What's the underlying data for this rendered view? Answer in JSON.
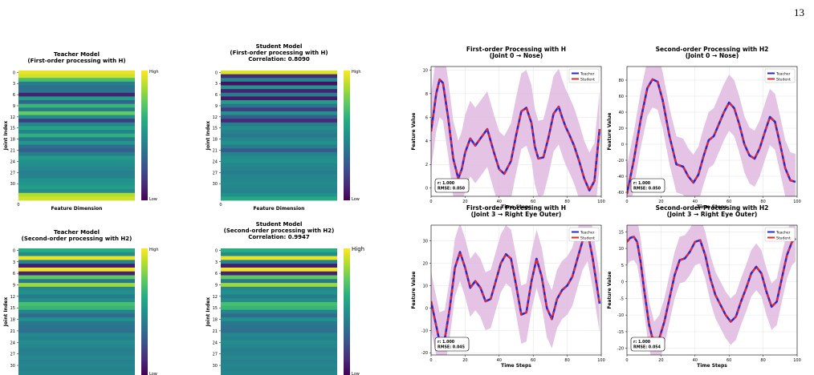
{
  "page": {
    "number": "13"
  },
  "colors": {
    "band": "#dfb8e0",
    "teacher": "#1f2bd6",
    "student": "#e8262a",
    "grid": "#e3e3e3"
  },
  "chart_data": [
    {
      "id": "hm-teacher-h",
      "type": "heatmap",
      "title": "Teacher Model",
      "subtitle": "(First-order processing with H)",
      "ylabel": "Joint Index",
      "xlabel": "Feature Dimension",
      "yticks": [
        "0",
        "3",
        "6",
        "9",
        "12",
        "15",
        "18",
        "21",
        "24",
        "27",
        "30"
      ],
      "xticks": [
        "0"
      ],
      "colorbar": {
        "high": "High",
        "low": "Low"
      },
      "rows": [
        0.97,
        0.93,
        0.7,
        0.42,
        0.36,
        0.38,
        0.1,
        0.55,
        0.32,
        0.66,
        0.42,
        0.76,
        0.48,
        0.18,
        0.46,
        0.58,
        0.44,
        0.64,
        0.4,
        0.52,
        0.36,
        0.3,
        0.42,
        0.54,
        0.5,
        0.48,
        0.46,
        0.43,
        0.44,
        0.5,
        0.52,
        0.55,
        0.48,
        0.88,
        0.93
      ]
    },
    {
      "id": "hm-student-h",
      "type": "heatmap",
      "title": "Student Model",
      "subtitle": "(First-order processing with H)",
      "note": "Correlation: 0.8090",
      "ylabel": "Joint Index",
      "xlabel": "Feature Dimension",
      "yticks": [
        "0",
        "3",
        "6",
        "9",
        "12",
        "15",
        "18",
        "21",
        "24",
        "27",
        "30"
      ],
      "xticks": [
        "0"
      ],
      "colorbar": {
        "high": "High",
        "low": "Low"
      },
      "rows": [
        0.95,
        0.12,
        0.46,
        0.05,
        0.52,
        0.1,
        0.42,
        0.07,
        0.55,
        0.38,
        0.18,
        0.5,
        0.3,
        0.12,
        0.42,
        0.48,
        0.44,
        0.4,
        0.46,
        0.5,
        0.42,
        0.28,
        0.44,
        0.48,
        0.5,
        0.46,
        0.44,
        0.42,
        0.45,
        0.46,
        0.47,
        0.46,
        0.44,
        0.5,
        0.6
      ]
    },
    {
      "id": "hm-teacher-h2",
      "type": "heatmap",
      "title": "Teacher Model",
      "subtitle": "(Second-order processing with H2)",
      "ylabel": "Joint Index",
      "xlabel": "",
      "yticks": [
        "0",
        "3",
        "6",
        "9",
        "12",
        "15",
        "18",
        "21",
        "24",
        "27",
        "30"
      ],
      "xticks": [],
      "colorbar": {
        "high": "High",
        "low": "Low"
      },
      "rows": [
        0.62,
        0.48,
        0.97,
        0.45,
        0.08,
        0.98,
        0.1,
        0.75,
        0.4,
        0.85,
        0.46,
        0.5,
        0.42,
        0.48,
        0.7,
        0.66,
        0.45,
        0.35,
        0.5,
        0.4,
        0.38,
        0.36,
        0.46,
        0.44,
        0.48,
        0.46,
        0.42,
        0.44,
        0.46,
        0.43,
        0.45,
        0.44,
        0.46
      ]
    },
    {
      "id": "hm-student-h2",
      "type": "heatmap",
      "title": "Student Model",
      "subtitle": "(Second-order processing with H2)",
      "note": "Correlation: 0.9947",
      "ylabel": "Joint Index",
      "xlabel": "",
      "yticks": [
        "0",
        "3",
        "6",
        "9",
        "12",
        "15",
        "18",
        "21",
        "24",
        "27",
        "30"
      ],
      "xticks": [],
      "colorbar": {
        "high": "High",
        "low": "Low"
      },
      "rows": [
        0.62,
        0.48,
        0.97,
        0.45,
        0.08,
        0.98,
        0.1,
        0.75,
        0.4,
        0.85,
        0.46,
        0.5,
        0.42,
        0.48,
        0.7,
        0.66,
        0.45,
        0.35,
        0.5,
        0.4,
        0.38,
        0.36,
        0.46,
        0.44,
        0.48,
        0.46,
        0.42,
        0.44,
        0.46,
        0.43,
        0.45,
        0.44,
        0.46
      ]
    },
    {
      "id": "line-h-joint0",
      "type": "line",
      "title": "First-order Processing with H",
      "subtitle": "(Joint 0 → Nose)",
      "xlabel": "Time Steps",
      "ylabel": "Feature Value",
      "xlim": [
        0,
        100
      ],
      "ylim": [
        -0.7,
        10.3
      ],
      "xticks": [
        0,
        20,
        40,
        60,
        80,
        100
      ],
      "yticks": [
        0,
        2,
        4,
        6,
        8,
        10
      ],
      "band": 3.2,
      "grid": true,
      "legend": {
        "position": "top-right",
        "entries": [
          "Teacher",
          "Student"
        ]
      },
      "stats": {
        "r": "r: 1.000",
        "rmse": "RMSE: 0.050"
      },
      "x": [
        0,
        3,
        5,
        7,
        10,
        13,
        16,
        18,
        20,
        23,
        26,
        29,
        33,
        37,
        40,
        43,
        47,
        50,
        53,
        56,
        59,
        61,
        63,
        66,
        69,
        72,
        75,
        77,
        79,
        81,
        84,
        87,
        90,
        93,
        96,
        99
      ],
      "series": [
        {
          "name": "Teacher",
          "values": [
            4.8,
            8.0,
            9.2,
            8.9,
            6.0,
            2.5,
            0.8,
            1.6,
            3.0,
            4.2,
            3.6,
            4.2,
            5.0,
            3.0,
            1.6,
            1.2,
            2.3,
            4.5,
            6.5,
            6.8,
            5.5,
            3.5,
            2.5,
            2.6,
            4.3,
            6.3,
            6.9,
            6.0,
            5.2,
            4.6,
            3.6,
            2.3,
            0.8,
            -0.2,
            0.6,
            5.0
          ]
        },
        {
          "name": "Student",
          "values": [
            4.8,
            8.0,
            9.2,
            8.9,
            6.0,
            2.5,
            0.8,
            1.6,
            3.0,
            4.2,
            3.6,
            4.2,
            5.0,
            3.0,
            1.6,
            1.2,
            2.3,
            4.5,
            6.5,
            6.8,
            5.5,
            3.5,
            2.5,
            2.6,
            4.3,
            6.3,
            6.9,
            6.0,
            5.2,
            4.6,
            3.6,
            2.3,
            0.8,
            -0.2,
            0.6,
            5.0
          ]
        }
      ]
    },
    {
      "id": "line-h2-joint0",
      "type": "line",
      "title": "Second-order Processing with H2",
      "subtitle": "(Joint 0 → Nose)",
      "xlabel": "Time Steps",
      "ylabel": "Feature Value",
      "xlim": [
        0,
        100
      ],
      "ylim": [
        -65,
        97
      ],
      "xticks": [
        0,
        20,
        40,
        60,
        80,
        100
      ],
      "yticks": [
        -60,
        -40,
        -20,
        0,
        20,
        40,
        60,
        80
      ],
      "band": 35,
      "grid": true,
      "legend": {
        "position": "top-right",
        "entries": [
          "Teacher",
          "Student"
        ]
      },
      "stats": {
        "r": "r: 1.000",
        "rmse": "RMSE: 0.050"
      },
      "x": [
        0,
        4,
        8,
        12,
        15,
        18,
        21,
        25,
        29,
        33,
        36,
        39,
        42,
        45,
        48,
        51,
        54,
        57,
        60,
        63,
        66,
        69,
        72,
        75,
        78,
        81,
        84,
        87,
        90,
        93,
        96,
        99
      ],
      "series": [
        {
          "name": "Teacher",
          "values": [
            -62,
            -20,
            30,
            70,
            81,
            78,
            55,
            10,
            -25,
            -28,
            -40,
            -48,
            -38,
            -15,
            5,
            10,
            25,
            40,
            52,
            45,
            25,
            0,
            -14,
            -18,
            -5,
            15,
            34,
            28,
            0,
            -30,
            -45,
            -47
          ]
        },
        {
          "name": "Student",
          "values": [
            -62,
            -20,
            30,
            70,
            81,
            78,
            55,
            10,
            -25,
            -28,
            -40,
            -48,
            -38,
            -15,
            5,
            10,
            25,
            40,
            52,
            45,
            25,
            0,
            -14,
            -18,
            -5,
            15,
            34,
            28,
            0,
            -30,
            -45,
            -47
          ]
        }
      ]
    },
    {
      "id": "line-h-joint3",
      "type": "line",
      "title": "First-order Processing with H",
      "subtitle": "(Joint 3 → Right Eye Outer)",
      "xlabel": "Time Steps",
      "ylabel": "Feature Value",
      "xlim": [
        0,
        100
      ],
      "ylim": [
        -21,
        37
      ],
      "xticks": [
        0,
        20,
        40,
        60,
        80,
        100
      ],
      "yticks": [
        -20,
        -10,
        0,
        10,
        20,
        30
      ],
      "band": 13,
      "grid": true,
      "legend": {
        "position": "top-right",
        "entries": [
          "Teacher",
          "Student"
        ]
      },
      "stats": {
        "r": "r: 1.000",
        "rmse": "RMSE: 0.045"
      },
      "x": [
        0,
        3,
        5,
        8,
        11,
        14,
        17,
        20,
        23,
        26,
        29,
        32,
        35,
        38,
        41,
        44,
        47,
        50,
        53,
        56,
        59,
        62,
        65,
        68,
        71,
        74,
        77,
        80,
        83,
        86,
        89,
        92,
        95,
        99
      ],
      "series": [
        {
          "name": "Teacher",
          "values": [
            3,
            -8,
            -15,
            -14,
            0,
            18,
            25,
            18,
            9,
            12,
            9,
            3,
            4,
            12,
            20,
            24,
            22,
            10,
            -3,
            -2,
            12,
            22,
            14,
            0,
            -5,
            4,
            8,
            10,
            14,
            22,
            30,
            34,
            22,
            2
          ]
        },
        {
          "name": "Student",
          "values": [
            3,
            -8,
            -15,
            -14,
            0,
            18,
            25,
            18,
            9,
            12,
            9,
            3,
            4,
            12,
            20,
            24,
            22,
            10,
            -3,
            -2,
            12,
            22,
            14,
            0,
            -5,
            4,
            8,
            10,
            14,
            22,
            30,
            34,
            22,
            2
          ]
        }
      ]
    },
    {
      "id": "line-h2-joint3",
      "type": "line",
      "title": "Second-order Processing with H2",
      "subtitle": "(Joint 3 → Right Eye Outer)",
      "xlabel": "Time Steps",
      "ylabel": "Feature Value",
      "xlim": [
        0,
        100
      ],
      "ylim": [
        -22,
        17
      ],
      "xticks": [
        0,
        20,
        40,
        60,
        80,
        100
      ],
      "yticks": [
        -20,
        -15,
        -10,
        -5,
        0,
        5,
        10,
        15
      ],
      "band": 7,
      "grid": true,
      "legend": {
        "position": "top-right",
        "entries": [
          "Teacher",
          "Student"
        ]
      },
      "stats": {
        "r": "r: 1.000",
        "rmse": "RMSE: 0.054"
      },
      "x": [
        0,
        2,
        4,
        6,
        8,
        10,
        13,
        16,
        19,
        22,
        25,
        28,
        31,
        34,
        37,
        40,
        43,
        46,
        49,
        52,
        55,
        58,
        61,
        64,
        67,
        70,
        73,
        76,
        79,
        82,
        85,
        88,
        91,
        94,
        97,
        99
      ],
      "series": [
        {
          "name": "Teacher",
          "values": [
            12,
            13.2,
            13.5,
            12,
            6,
            -2,
            -13,
            -19,
            -17,
            -12,
            -5,
            2,
            6.5,
            7,
            9,
            12,
            12.5,
            8,
            1,
            -4,
            -7,
            -10,
            -12,
            -10.5,
            -6,
            -2,
            2.5,
            4.5,
            2.5,
            -3,
            -7.5,
            -6,
            1,
            8,
            12,
            13
          ]
        },
        {
          "name": "Student",
          "values": [
            12,
            13.2,
            13.5,
            12,
            6,
            -2,
            -13,
            -19,
            -17,
            -12,
            -5,
            2,
            6.5,
            7,
            9,
            12,
            12.5,
            8,
            1,
            -4,
            -7,
            -10,
            -12,
            -10.5,
            -6,
            -2,
            2.5,
            4.5,
            2.5,
            -3,
            -7.5,
            -6,
            1,
            8,
            12,
            13
          ]
        }
      ]
    }
  ]
}
